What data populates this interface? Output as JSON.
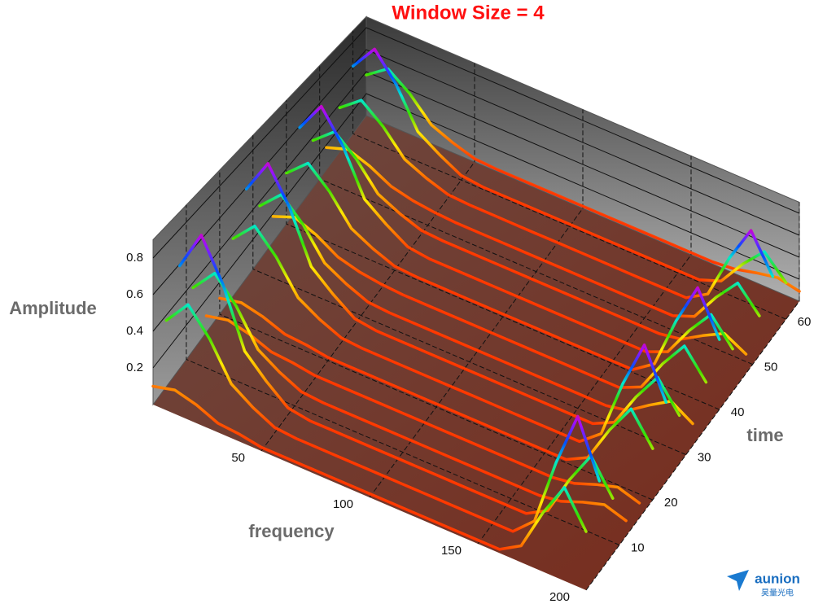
{
  "chart_data": {
    "type": "waterfall3d",
    "title": "Window Size = 4",
    "title_color": "#ff1010",
    "xlabel": "frequency",
    "ylabel": "time",
    "zlabel": "Amplitude",
    "x": [
      0,
      10,
      20,
      30,
      40,
      50,
      60,
      70,
      80,
      90,
      100,
      110,
      120,
      130,
      140,
      150,
      160,
      170,
      180,
      190,
      200
    ],
    "xlim": [
      0,
      200
    ],
    "xticks": [
      50,
      100,
      150,
      200
    ],
    "ylim": [
      0,
      64
    ],
    "yticks": [
      10,
      20,
      30,
      40,
      50,
      60
    ],
    "zlim": [
      0,
      0.9
    ],
    "zticks": [
      0.2,
      0.4,
      0.6,
      0.8
    ],
    "grid": true,
    "colors": [
      "#ff2a00",
      "#ff8a00",
      "#ffe800",
      "#38e000",
      "#00e8d0",
      "#0050ff",
      "#9a10ff",
      "#ff0080"
    ],
    "series": [
      {
        "y": 0,
        "values": [
          0.1,
          0.13,
          0.1,
          0.05,
          0.04,
          0.02,
          0.02,
          0.02,
          0.02,
          0.02,
          0.02,
          0.02,
          0.02,
          0.02,
          0.02,
          0.02,
          0.02,
          0.09,
          0.32,
          0.51,
          0.32
        ]
      },
      {
        "y": 4,
        "values": [
          0.37,
          0.51,
          0.37,
          0.17,
          0.09,
          0.03,
          0.02,
          0.02,
          0.02,
          0.02,
          0.02,
          0.02,
          0.02,
          0.02,
          0.02,
          0.02,
          0.02,
          0.13,
          0.51,
          0.82,
          0.51
        ]
      },
      {
        "y": 8,
        "values": [
          0.59,
          0.82,
          0.59,
          0.26,
          0.14,
          0.04,
          0.02,
          0.02,
          0.02,
          0.02,
          0.02,
          0.02,
          0.02,
          0.02,
          0.02,
          0.02,
          0.02,
          0.09,
          0.32,
          0.51,
          0.32
        ]
      },
      {
        "y": 12,
        "values": [
          0.37,
          0.51,
          0.37,
          0.17,
          0.09,
          0.03,
          0.02,
          0.02,
          0.02,
          0.02,
          0.02,
          0.02,
          0.02,
          0.02,
          0.02,
          0.02,
          0.02,
          0.04,
          0.09,
          0.13,
          0.09
        ]
      },
      {
        "y": 16,
        "values": [
          0.1,
          0.13,
          0.1,
          0.05,
          0.04,
          0.02,
          0.02,
          0.02,
          0.02,
          0.02,
          0.02,
          0.02,
          0.02,
          0.02,
          0.02,
          0.02,
          0.02,
          0.04,
          0.09,
          0.13,
          0.09
        ]
      },
      {
        "y": 20,
        "values": [
          0.1,
          0.13,
          0.1,
          0.05,
          0.04,
          0.02,
          0.02,
          0.02,
          0.02,
          0.02,
          0.02,
          0.02,
          0.02,
          0.02,
          0.02,
          0.02,
          0.02,
          0.09,
          0.32,
          0.51,
          0.32
        ]
      },
      {
        "y": 24,
        "values": [
          0.37,
          0.51,
          0.37,
          0.17,
          0.09,
          0.03,
          0.02,
          0.02,
          0.02,
          0.02,
          0.02,
          0.02,
          0.02,
          0.02,
          0.02,
          0.02,
          0.02,
          0.13,
          0.51,
          0.82,
          0.51
        ]
      },
      {
        "y": 28,
        "values": [
          0.59,
          0.82,
          0.59,
          0.26,
          0.14,
          0.04,
          0.02,
          0.02,
          0.02,
          0.02,
          0.02,
          0.02,
          0.02,
          0.02,
          0.02,
          0.02,
          0.02,
          0.09,
          0.32,
          0.51,
          0.32
        ]
      },
      {
        "y": 32,
        "values": [
          0.37,
          0.51,
          0.37,
          0.17,
          0.09,
          0.03,
          0.02,
          0.02,
          0.02,
          0.02,
          0.02,
          0.02,
          0.02,
          0.02,
          0.02,
          0.02,
          0.02,
          0.05,
          0.15,
          0.24,
          0.15
        ]
      },
      {
        "y": 36,
        "values": [
          0.18,
          0.24,
          0.18,
          0.09,
          0.05,
          0.03,
          0.02,
          0.02,
          0.02,
          0.02,
          0.02,
          0.02,
          0.02,
          0.02,
          0.02,
          0.02,
          0.02,
          0.09,
          0.32,
          0.51,
          0.32
        ]
      },
      {
        "y": 40,
        "values": [
          0.37,
          0.51,
          0.37,
          0.17,
          0.09,
          0.03,
          0.02,
          0.02,
          0.02,
          0.02,
          0.02,
          0.02,
          0.02,
          0.02,
          0.02,
          0.02,
          0.02,
          0.13,
          0.51,
          0.82,
          0.51
        ]
      },
      {
        "y": 44,
        "values": [
          0.59,
          0.82,
          0.59,
          0.26,
          0.14,
          0.04,
          0.02,
          0.02,
          0.02,
          0.02,
          0.02,
          0.02,
          0.02,
          0.02,
          0.02,
          0.02,
          0.02,
          0.09,
          0.32,
          0.51,
          0.32
        ]
      },
      {
        "y": 48,
        "values": [
          0.37,
          0.51,
          0.37,
          0.17,
          0.09,
          0.03,
          0.02,
          0.02,
          0.02,
          0.02,
          0.02,
          0.02,
          0.02,
          0.02,
          0.02,
          0.02,
          0.02,
          0.05,
          0.15,
          0.24,
          0.15
        ]
      },
      {
        "y": 52,
        "values": [
          0.18,
          0.24,
          0.18,
          0.09,
          0.05,
          0.03,
          0.02,
          0.02,
          0.02,
          0.02,
          0.02,
          0.02,
          0.02,
          0.02,
          0.02,
          0.02,
          0.02,
          0.09,
          0.32,
          0.51,
          0.32
        ]
      },
      {
        "y": 56,
        "values": [
          0.37,
          0.51,
          0.37,
          0.17,
          0.09,
          0.03,
          0.02,
          0.02,
          0.02,
          0.02,
          0.02,
          0.02,
          0.02,
          0.02,
          0.02,
          0.02,
          0.02,
          0.13,
          0.51,
          0.82,
          0.51
        ]
      },
      {
        "y": 60,
        "values": [
          0.59,
          0.82,
          0.59,
          0.26,
          0.14,
          0.04,
          0.02,
          0.02,
          0.02,
          0.02,
          0.02,
          0.02,
          0.02,
          0.02,
          0.02,
          0.02,
          0.02,
          0.09,
          0.32,
          0.51,
          0.32
        ]
      },
      {
        "y": 64,
        "values": [
          0.37,
          0.51,
          0.37,
          0.17,
          0.09,
          0.03,
          0.02,
          0.02,
          0.02,
          0.02,
          0.02,
          0.02,
          0.02,
          0.02,
          0.02,
          0.02,
          0.02,
          0.04,
          0.09,
          0.13,
          0.09
        ]
      }
    ]
  },
  "watermark": {
    "brand": "aunion",
    "subtitle": "昊量光电"
  }
}
